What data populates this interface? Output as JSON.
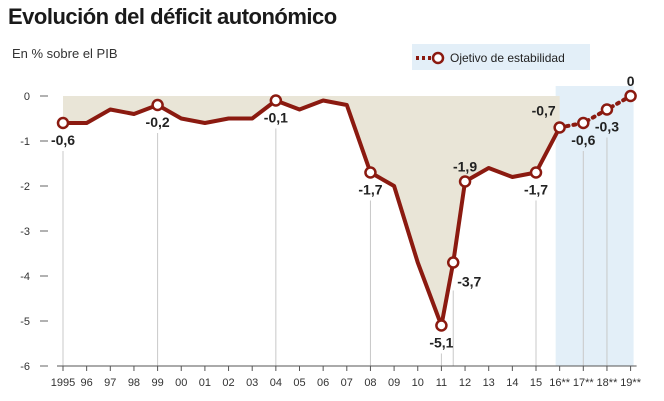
{
  "chart_data": {
    "type": "line",
    "title": "Evolución del déficit autonómico",
    "subtitle": "En % sobre el PIB",
    "xlabel": "",
    "ylabel": "",
    "ylim": [
      -6,
      0
    ],
    "yticks": [
      "0",
      "-1",
      "-2",
      "-3",
      "-4",
      "-5",
      "-6"
    ],
    "ytick_values": [
      0,
      -1,
      -2,
      -3,
      -4,
      -5,
      -6
    ],
    "categories": [
      "1995",
      "96",
      "97",
      "98",
      "99",
      "00",
      "01",
      "02",
      "03",
      "04",
      "05",
      "06",
      "07",
      "08",
      "09",
      "10",
      "11",
      "12",
      "13",
      "14",
      "15",
      "16**",
      "17**",
      "18**",
      "19**"
    ],
    "series": [
      {
        "name": "Déficit autonómico",
        "x": [
          0,
          1,
          2,
          3,
          4,
          5,
          6,
          7,
          8,
          9,
          10,
          11,
          12,
          13,
          14,
          15,
          16,
          16.5,
          17,
          18,
          19,
          20,
          21
        ],
        "values": [
          -0.6,
          -0.6,
          -0.3,
          -0.4,
          -0.2,
          -0.5,
          -0.6,
          -0.5,
          -0.5,
          -0.1,
          -0.3,
          -0.1,
          -0.2,
          -1.7,
          -2.0,
          -3.7,
          -5.1,
          -3.7,
          -1.9,
          -1.6,
          -1.8,
          -1.7,
          -0.7
        ],
        "color": "#8b1a10"
      },
      {
        "name": "Ojetivo de estabilidad",
        "x": [
          21,
          22,
          23,
          24
        ],
        "values": [
          -0.7,
          -0.6,
          -0.3,
          0
        ],
        "color": "#8b1a10",
        "style": "dotted"
      }
    ],
    "markers": [
      {
        "x": 0,
        "value": -0.6,
        "label": "-0,6",
        "pos": "below"
      },
      {
        "x": 4,
        "value": -0.2,
        "label": "-0,2",
        "pos": "below"
      },
      {
        "x": 9,
        "value": -0.1,
        "label": "-0,1",
        "pos": "below"
      },
      {
        "x": 13,
        "value": -1.7,
        "label": "-1,7",
        "pos": "below"
      },
      {
        "x": 16,
        "value": -5.1,
        "label": "-5,1",
        "pos": "below"
      },
      {
        "x": 16.5,
        "value": -3.7,
        "label": "-3,7",
        "pos": "belowright"
      },
      {
        "x": 17,
        "value": -1.9,
        "label": "-1,9",
        "pos": "above"
      },
      {
        "x": 20,
        "value": -1.7,
        "label": "-1,7",
        "pos": "below"
      },
      {
        "x": 21,
        "value": -0.7,
        "label": "-0,7",
        "pos": "aboveleft"
      },
      {
        "x": 22,
        "value": -0.6,
        "label": "-0,6",
        "pos": "below"
      },
      {
        "x": 23,
        "value": -0.3,
        "label": "-0,3",
        "pos": "below"
      },
      {
        "x": 24,
        "value": 0,
        "label": "0",
        "pos": "above"
      }
    ],
    "shaded_region": {
      "from": "16**",
      "to": "19**",
      "meaning": "Ojetivo de estabilidad"
    },
    "legend": {
      "label": "Ojetivo de estabilidad",
      "placement": "top-right"
    },
    "colors": {
      "line": "#8b1a10",
      "area": "#e9e5d7",
      "target_band": "#e3eff8",
      "grid": "#c8c8c8"
    }
  }
}
